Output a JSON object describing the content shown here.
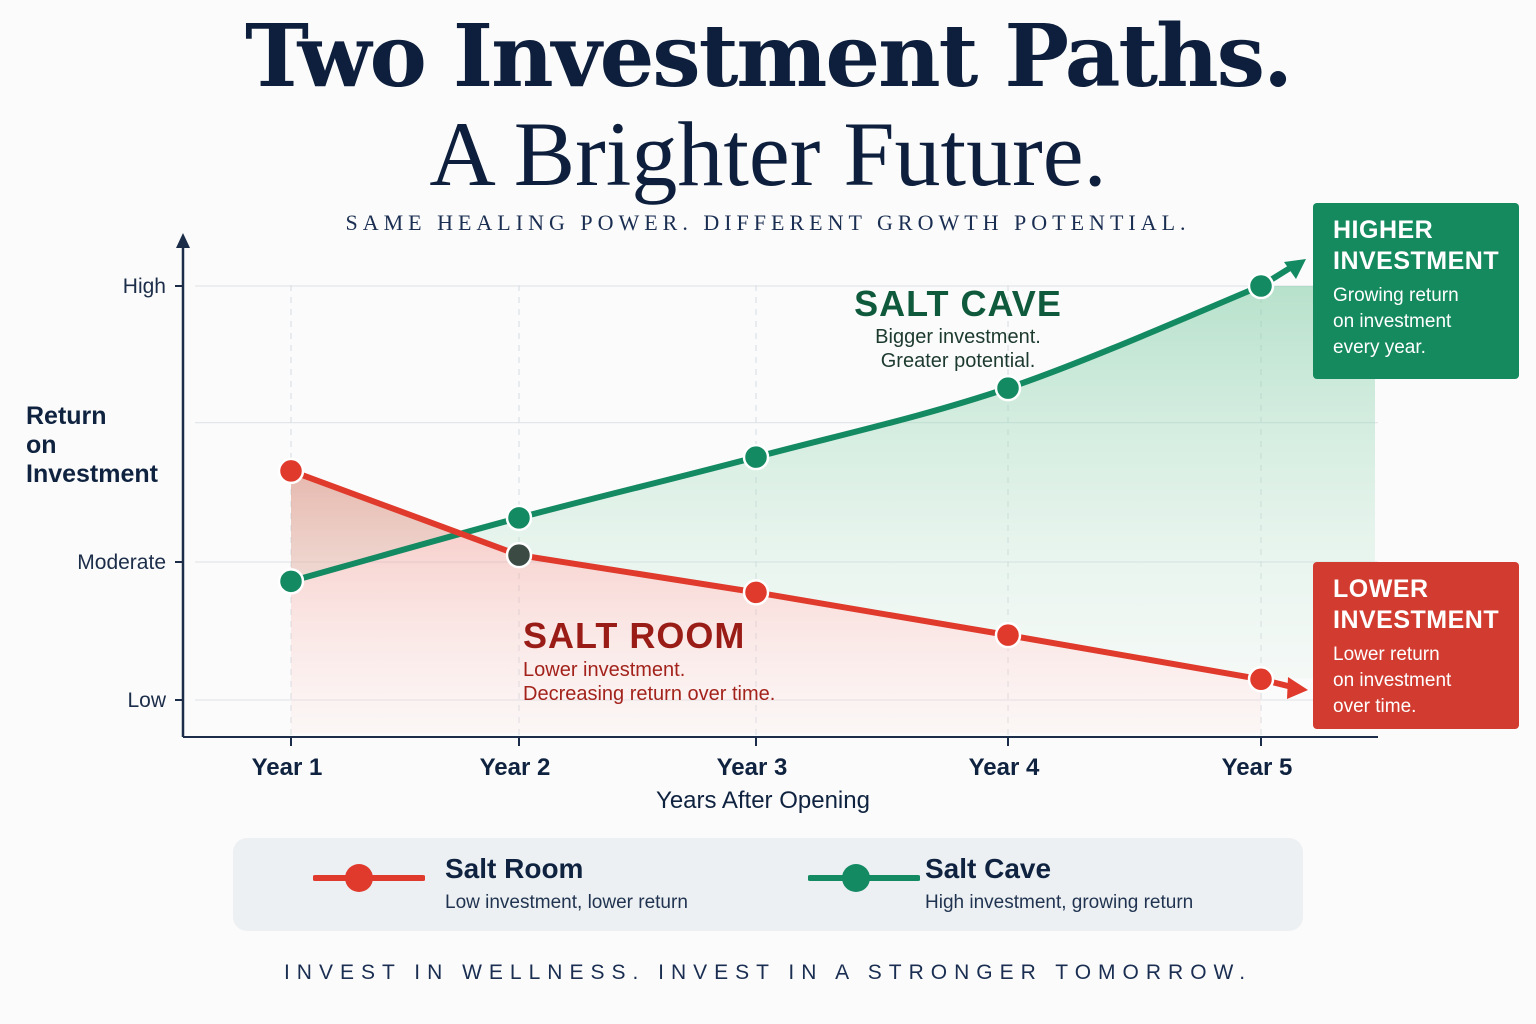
{
  "header": {
    "title_line1": "Two Investment Paths.",
    "title_line2": "A Brighter Future.",
    "subtitle": "SAME HEALING POWER. DIFFERENT GROWTH POTENTIAL."
  },
  "colors": {
    "salt_room": "#e03a2c",
    "salt_cave": "#138a62",
    "navy": "#0d1f3c"
  },
  "chart_data": {
    "type": "line",
    "xlabel": "Years After Opening",
    "ylabel": "Return on Investment",
    "categories": [
      "Year 1",
      "Year 2",
      "Year 3",
      "Year 4",
      "Year 5"
    ],
    "y_ticks": [
      "Low",
      "Moderate",
      "High"
    ],
    "grid": true,
    "series": [
      {
        "name": "Salt Room",
        "color": "#e03a2c",
        "values": [
          1.66,
          1.05,
          0.78,
          0.47,
          0.15
        ],
        "annotation_title": "SALT ROOM",
        "annotation_lines": [
          "Lower investment.",
          "Decreasing return over time."
        ]
      },
      {
        "name": "Salt Cave",
        "color": "#138a62",
        "values": [
          0.86,
          1.32,
          1.76,
          2.26,
          3.0
        ],
        "annotation_title": "SALT CAVE",
        "annotation_lines": [
          "Bigger investment.",
          "Greater potential."
        ]
      }
    ]
  },
  "callouts": {
    "high": {
      "title_line1": "HIGHER",
      "title_line2": "INVESTMENT",
      "desc": [
        "Growing return",
        "on investment",
        "every year."
      ]
    },
    "low": {
      "title_line1": "LOWER",
      "title_line2": "INVESTMENT",
      "desc": [
        "Lower return",
        "on investment",
        "over time."
      ]
    }
  },
  "legend": {
    "salt_room": {
      "name": "Salt Room",
      "desc": "Low investment, lower return"
    },
    "salt_cave": {
      "name": "Salt Cave",
      "desc": "High investment, growing return"
    }
  },
  "footer": {
    "tagline": "INVEST IN WELLNESS. INVEST IN A STRONGER TOMORROW."
  }
}
